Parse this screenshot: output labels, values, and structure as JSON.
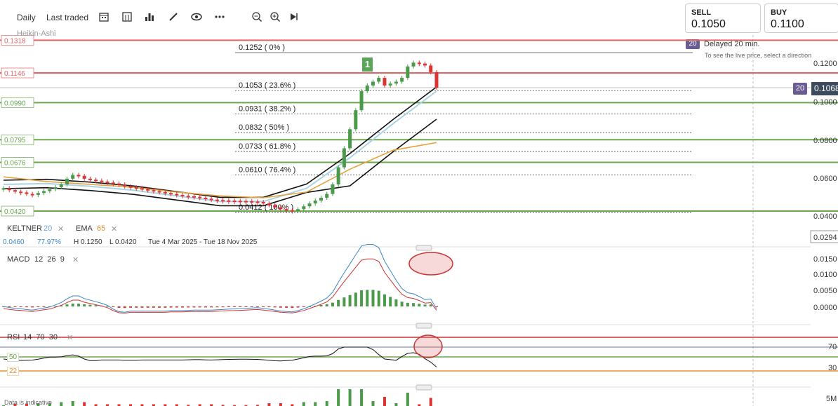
{
  "toolbar": {
    "timeframe": "Daily",
    "price_type": "Last traded",
    "icons": [
      "calendar-icon",
      "compare-icon",
      "bar-chart-icon",
      "draw-icon",
      "eye-icon",
      "more-icon",
      "zoom-out-icon",
      "zoom-in-icon",
      "play-icon"
    ]
  },
  "trade": {
    "sell_label": "SELL",
    "sell_price": "0.1050",
    "buy_label": "BUY",
    "buy_price": "0.1100",
    "delay_badge": "20",
    "delay_text": "Delayed 20 min.",
    "delay_hint": "To see the live price, select a direction"
  },
  "chart_label": "Heikin-Ashi",
  "current_price": {
    "badge": "20",
    "value": "0.1068"
  },
  "horizontal_levels": [
    {
      "value": 0.1318,
      "label": "0.1318",
      "color": "#e06666"
    },
    {
      "value": 0.1146,
      "label": "0.1146",
      "color": "#e06666"
    },
    {
      "value": 0.099,
      "label": "0.0990",
      "color": "#6aa84f"
    },
    {
      "value": 0.0795,
      "label": "0.0795",
      "color": "#6aa84f"
    },
    {
      "value": 0.0676,
      "label": "0.0676",
      "color": "#6aa84f"
    },
    {
      "value": 0.042,
      "label": "0.0420",
      "color": "#6aa84f"
    }
  ],
  "fib_levels": [
    {
      "value": 0.1252,
      "label": "0.1252 ( 0% )"
    },
    {
      "value": 0.1053,
      "label": "0.1053 ( 23.6% )"
    },
    {
      "value": 0.0931,
      "label": "0.0931 ( 38.2% )"
    },
    {
      "value": 0.0832,
      "label": "0.0832 ( 50% )"
    },
    {
      "value": 0.0733,
      "label": "0.0733 ( 61.8% )"
    },
    {
      "value": 0.061,
      "label": "0.0610 ( 76.4% )"
    },
    {
      "value": 0.0412,
      "label": "0.0412 ( 100% )"
    }
  ],
  "wave_label": "1",
  "price_axis": [
    "0.1200",
    "0.1000",
    "0.0800",
    "0.0600",
    "0.0400",
    "0.0294"
  ],
  "indicators": {
    "keltner_name": "KELTNER",
    "keltner_param": "20",
    "ema_name": "EMA",
    "ema_param": "65",
    "close_glyph": "✕"
  },
  "range_info": {
    "range": "0.0460",
    "range_pct": "77.97%",
    "high": "H 0.1250",
    "low": "L 0.0420",
    "dates": "Tue 4 Mar 2025 - Tue 18 Nov 2025"
  },
  "macd": {
    "label": "MACD",
    "params": "12  26  9",
    "axis": [
      "0.0150",
      "0.0100",
      "0.0050",
      "0.0000"
    ]
  },
  "rsi": {
    "label": "RSI",
    "params": "14  70  30",
    "level_50": "50",
    "level_22": "22",
    "axis": [
      "70",
      "30"
    ]
  },
  "volume": {
    "axis": "5M"
  },
  "footer": "Data is indicative",
  "chart_data": {
    "type": "line",
    "title": "",
    "date_range": [
      "2025-03-04",
      "2025-11-18"
    ],
    "ylim": [
      0.0294,
      0.1318
    ],
    "series": [
      {
        "name": "Heikin-Ashi close",
        "values": [
          0.054,
          0.053,
          0.0522,
          0.0518,
          0.051,
          0.0505,
          0.0515,
          0.0525,
          0.0535,
          0.0545,
          0.056,
          0.059,
          0.061,
          0.0605,
          0.059,
          0.0585,
          0.058,
          0.0575,
          0.057,
          0.0565,
          0.056,
          0.055,
          0.0545,
          0.054,
          0.0535,
          0.053,
          0.0525,
          0.052,
          0.0515,
          0.051,
          0.0505,
          0.05,
          0.0498,
          0.0495,
          0.049,
          0.0485,
          0.048,
          0.0478,
          0.0476,
          0.0475,
          0.0474,
          0.0473,
          0.0472,
          0.047,
          0.0468,
          0.046,
          0.045,
          0.044,
          0.043,
          0.0425,
          0.042,
          0.043,
          0.0445,
          0.046,
          0.0475,
          0.049,
          0.051,
          0.056,
          0.065,
          0.075,
          0.085,
          0.095,
          0.105,
          0.108,
          0.11,
          0.112,
          0.108,
          0.109,
          0.11,
          0.112,
          0.118,
          0.12,
          0.1195,
          0.1185,
          0.115,
          0.1068
        ]
      },
      {
        "name": "KELTNER 20",
        "values": [
          0.056,
          0.0565,
          0.055,
          0.053,
          0.05,
          0.047,
          0.047,
          0.054,
          0.07,
          0.088,
          0.105
        ]
      },
      {
        "name": "EMA 65",
        "values": [
          0.06,
          0.0575,
          0.056,
          0.0545,
          0.052,
          0.05,
          0.049,
          0.052,
          0.064,
          0.074,
          0.078
        ]
      }
    ]
  }
}
